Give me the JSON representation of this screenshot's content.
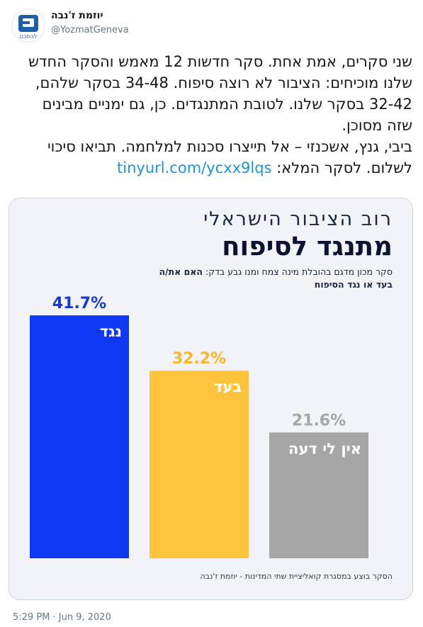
{
  "tweet": {
    "author_name": "יוזמת ז'נבה",
    "author_handle": "@YozmatGeneva",
    "avatar_text": "להסכם",
    "text_main": "שני סקרים, אמת אחת. סקר חדשות 12 מאמש והסקר החדש שלנו מוכיחים: הציבור לא רוצה סיפוח. 34-48 בסקר שלהם, 32-42 בסקר שלנו. לטובת המתנגדים. כן, גם ימניים מבינים שזה מסוכן.",
    "text_second": "ביבי, גנץ, אשכנזי – אל תייצרו סכנות למלחמה. תביאו סיכוי לשלום. לסקר המלא: ",
    "link": "tinyurl.com/ycxx9lqs",
    "timestamp": "5:29 PM · Jun 9, 2020"
  },
  "card": {
    "title_line1": "רוב הציבור הישראלי",
    "title_line2": "מתנגד לסיפוח",
    "subtitle_plain": "סקר מכון מדגם בהובלת מינה צמח ומנו גבע בדק: ",
    "subtitle_bold": "האם את/ה בעד או נגד הסיפוח",
    "footnote": "הסקר בוצע במסגרת קואליציית שתי המדינות - יוזמת ז'נבה"
  },
  "chart_data": {
    "type": "bar",
    "title": "מתנגד לסיפוח",
    "categories": [
      "נגד",
      "בעד",
      "אין לי דעה"
    ],
    "values": [
      41.7,
      32.2,
      21.6
    ],
    "value_labels": [
      "41.7%",
      "32.2%",
      "21.6%"
    ],
    "colors": [
      "#0f39f5",
      "#fec43c",
      "#a6a6a6"
    ],
    "ylim": [
      0,
      45
    ],
    "grid": false,
    "legend": "none"
  }
}
